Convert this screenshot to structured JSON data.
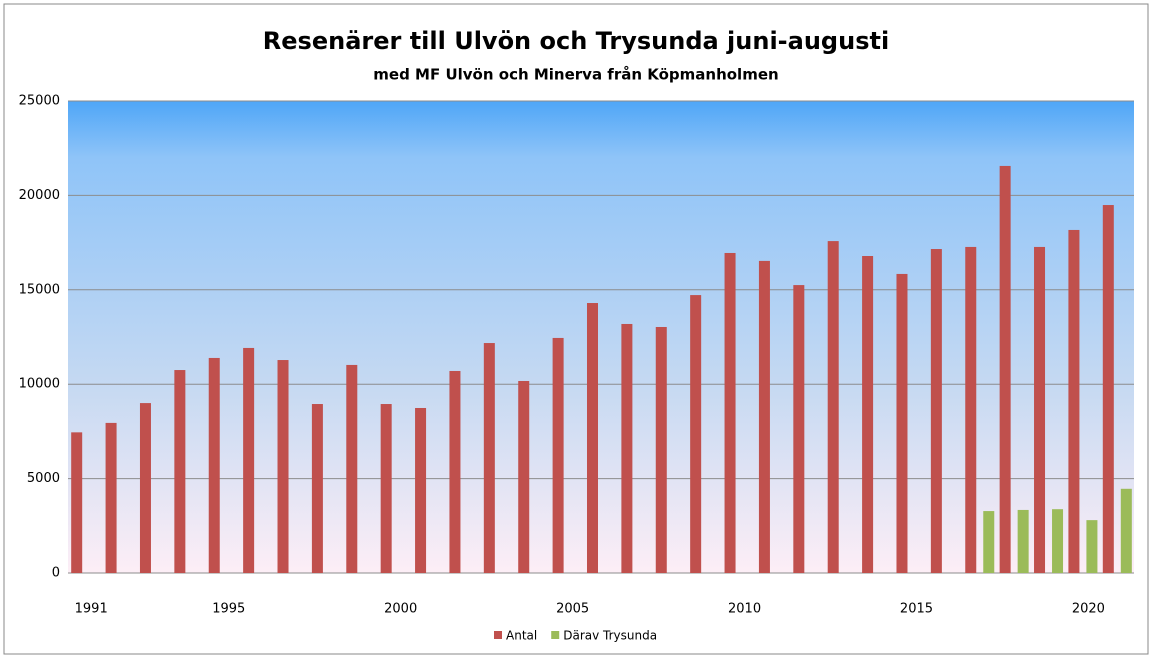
{
  "chart_data": {
    "type": "bar",
    "title": "Resenärer till Ulvön och Trysunda juni-augusti",
    "subtitle": "med MF Ulvön och Minerva från Köpmanholmen",
    "categories": [
      "1991",
      null,
      null,
      null,
      "1995",
      null,
      null,
      null,
      null,
      "2000",
      null,
      null,
      null,
      null,
      "2005",
      null,
      null,
      null,
      null,
      "2010",
      null,
      null,
      null,
      null,
      "2015",
      null,
      null,
      null,
      null,
      "2020",
      null
    ],
    "series": [
      {
        "name": "Antal",
        "color": "#c0504d",
        "values": [
          7450,
          7950,
          9000,
          10750,
          11390,
          11920,
          11280,
          8950,
          11020,
          8950,
          8740,
          10700,
          12180,
          10170,
          12450,
          14300,
          13190,
          13030,
          14720,
          16950,
          16530,
          15250,
          17580,
          16790,
          15840,
          17160,
          17270,
          21560,
          17270,
          18170,
          19490
        ]
      },
      {
        "name": "Därav Trysunda",
        "color": "#9bbb59",
        "values": [
          null,
          null,
          null,
          null,
          null,
          null,
          null,
          null,
          null,
          null,
          null,
          null,
          null,
          null,
          null,
          null,
          null,
          null,
          null,
          null,
          null,
          null,
          null,
          null,
          null,
          null,
          3280,
          3340,
          3380,
          2800,
          4460
        ]
      }
    ],
    "ylim": [
      0,
      25000
    ],
    "yticks": [
      0,
      5000,
      10000,
      15000,
      20000,
      25000
    ],
    "grid": true,
    "legend": "bottom"
  }
}
